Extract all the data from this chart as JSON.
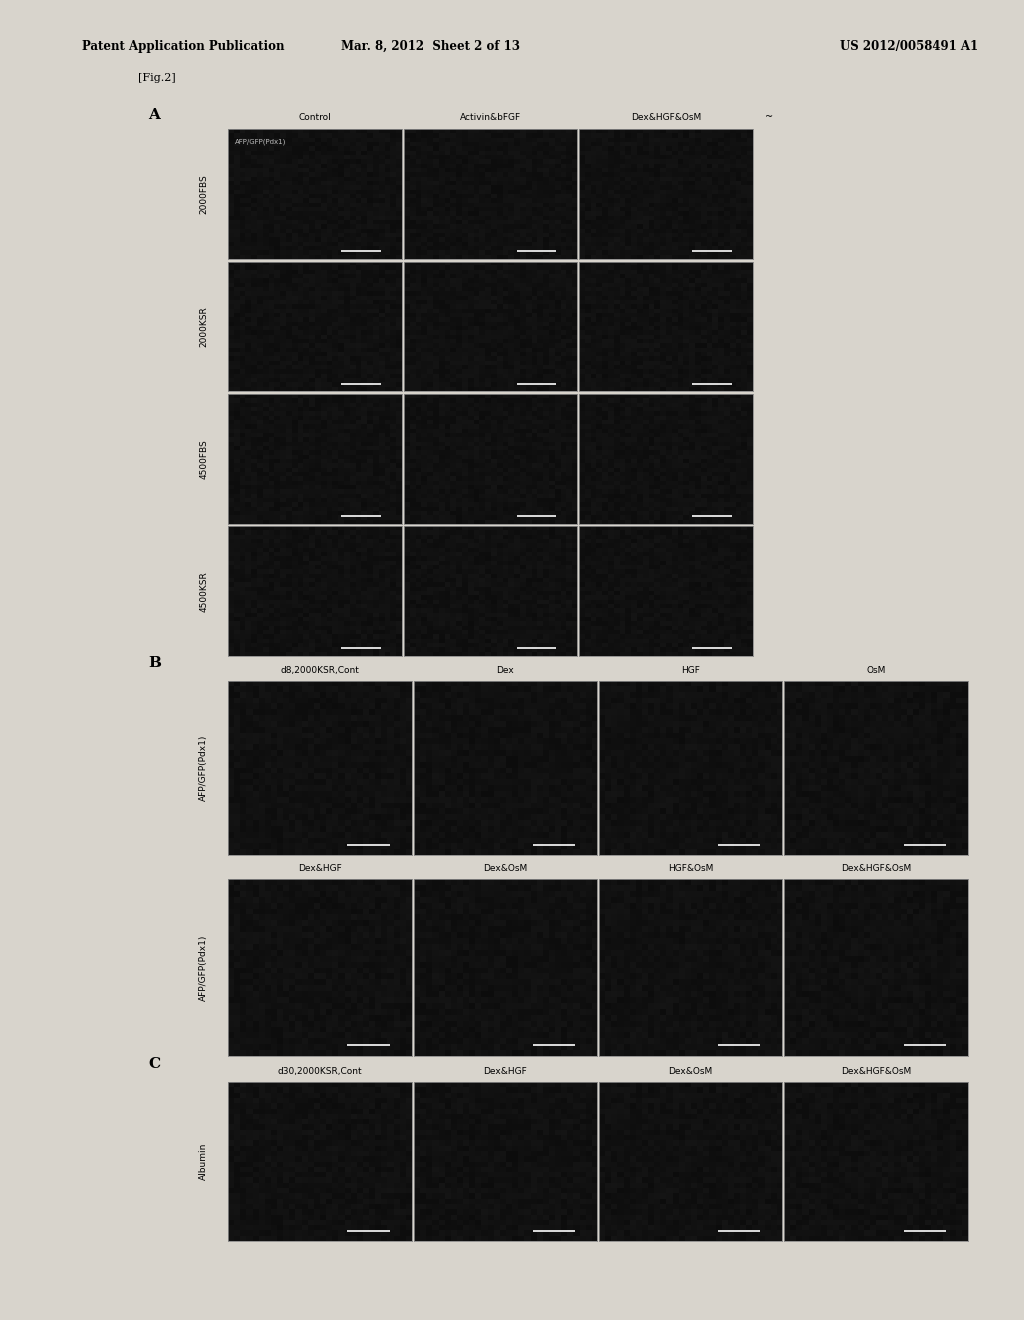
{
  "header_left": "Patent Application Publication",
  "header_mid": "Mar. 8, 2012  Sheet 2 of 13",
  "header_right": "US 2012/0058491 A1",
  "fig_label": "[Fig.2]",
  "page_bg": "#d8d4cc",
  "cell_bg": "#111111",
  "cell_border": "#cccccc",
  "text_color": "#000000",
  "section_A": {
    "label": "A",
    "col_headers": [
      "Control",
      "Activin&bFGF",
      "Dex&HGF&OsM"
    ],
    "row_headers": [
      "2000FBS",
      "2000KSR",
      "4500FBS",
      "4500KSR"
    ],
    "n_cols": 3,
    "n_rows": 4,
    "first_cell_label": "AFP/GFP(Pdx1)"
  },
  "section_B": {
    "label": "B",
    "row1_col_headers": [
      "d8,2000KSR,Cont",
      "Dex",
      "HGF",
      "OsM"
    ],
    "row2_col_headers": [
      "Dex&HGF",
      "Dex&OsM",
      "HGF&OsM",
      "Dex&HGF&OsM"
    ],
    "row1_label": "AFP/GFP(Pdx1)",
    "row2_label": "AFP/GFP(Pdx1)",
    "n_cols": 4,
    "n_rows": 2
  },
  "section_C": {
    "label": "C",
    "col_headers": [
      "d30,2000KSR,Cont",
      "Dex&HGF",
      "Dex&OsM",
      "Dex&HGF&OsM"
    ],
    "row_label": "Albumin",
    "n_cols": 4,
    "n_rows": 1
  },
  "header_fontsize": 8.5,
  "section_label_fontsize": 11,
  "col_header_fontsize": 6.5,
  "row_header_fontsize": 6.5,
  "fig_label_fontsize": 8,
  "ellipsis": "~"
}
